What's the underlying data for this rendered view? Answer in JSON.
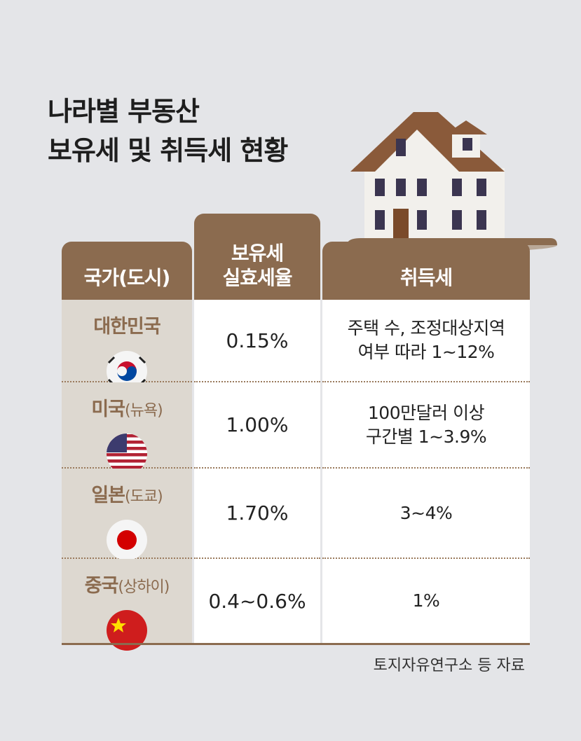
{
  "title": {
    "lines": [
      "나라별 부동산",
      "보유세 및 취득세 현황"
    ]
  },
  "table": {
    "headers": [
      {
        "lines": [
          "국가(도시)"
        ]
      },
      {
        "lines": [
          "보유세",
          "실효세율"
        ]
      },
      {
        "lines": [
          "취득세"
        ]
      }
    ],
    "rows": [
      {
        "country": "대한민국",
        "holding_tax": "0.15%",
        "acquisition_tax": [
          "주택 수, 조정대상지역",
          "여부 따라 1~12%"
        ]
      },
      {
        "country": "미국",
        "city": "(뉴욕)",
        "holding_tax": "1.00%",
        "acquisition_tax": [
          "100만달러 이상",
          "구간별 1~3.9%"
        ]
      },
      {
        "country": "일본",
        "city": "(도쿄)",
        "holding_tax": "1.70%",
        "acquisition_tax": [
          "3~4%"
        ]
      },
      {
        "country": "중국",
        "city": "(상하이)",
        "holding_tax": "0.4~0.6%",
        "acquisition_tax": [
          "1%"
        ]
      }
    ]
  },
  "source": "토지자유연구소 등 자료"
}
